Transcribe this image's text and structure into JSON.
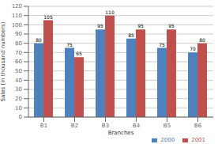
{
  "chart_data": {
    "type": "bar",
    "categories": [
      "B1",
      "B2",
      "B3",
      "B4",
      "B5",
      "B6"
    ],
    "series": [
      {
        "name": "2000",
        "color": "#4f81bd",
        "values": [
          80,
          75,
          95,
          85,
          75,
          70
        ]
      },
      {
        "name": "2001",
        "color": "#c0504d",
        "values": [
          105,
          65,
          110,
          95,
          95,
          80
        ]
      }
    ],
    "xlabel": "Branches",
    "ylabel": "Sales (in thousand numbers)",
    "ylim": [
      0,
      120
    ],
    "yticks": [
      0,
      10,
      20,
      30,
      40,
      50,
      60,
      70,
      80,
      90,
      100,
      110,
      120
    ],
    "grid": true,
    "legend": "lower right",
    "data_labels": true
  }
}
